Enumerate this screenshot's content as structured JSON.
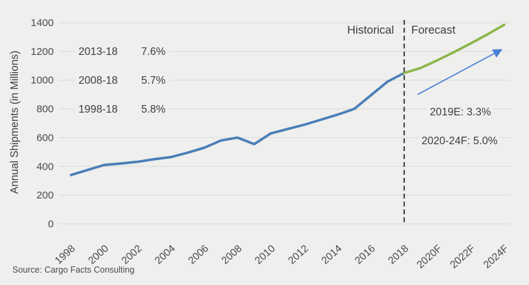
{
  "chart": {
    "ylabel": "Annual Shipments (in Millions)",
    "source": "Source: Cargo Facts Consulting",
    "annotations": {
      "cagr_rows": [
        {
          "period": "2013-18",
          "value": "7.6%"
        },
        {
          "period": "2008-18",
          "value": "5.7%"
        },
        {
          "period": "1998-18",
          "value": "5.8%"
        }
      ],
      "historical_label": "Historical",
      "forecast_label": "Forecast",
      "forecast_note_2019": "2019E: 3.3%",
      "forecast_note_2020_24": "2020-24F: 5.0%"
    }
  },
  "chart_data": {
    "type": "line",
    "title": "",
    "ylabel": "Annual Shipments (in Millions)",
    "xlabel": "",
    "ylim": [
      0,
      1400
    ],
    "yticks": [
      0,
      200,
      400,
      600,
      800,
      1000,
      1200,
      1400
    ],
    "xlim": [
      1998,
      2024
    ],
    "grid": true,
    "legend": "none",
    "divider_x": 2018,
    "colors": {
      "grid": "#d9d9d9",
      "divider": "#3c3c3c",
      "historical_line": "#4a7eb8",
      "forecast_line": "#8db54b",
      "trend_arrow": "#4a7fd4",
      "background": "#efefee",
      "text": "#3d3d3d"
    },
    "series": [
      {
        "name": "Historical",
        "color": "#4a7eb8",
        "x": [
          1998,
          1999,
          2000,
          2001,
          2002,
          2003,
          2004,
          2005,
          2006,
          2007,
          2008,
          2009,
          2010,
          2011,
          2012,
          2013,
          2014,
          2015,
          2016,
          2017,
          2018
        ],
        "values": [
          340,
          375,
          410,
          420,
          432,
          450,
          465,
          495,
          530,
          580,
          600,
          555,
          630,
          660,
          690,
          725,
          760,
          800,
          895,
          990,
          1050
        ]
      },
      {
        "name": "Forecast",
        "color": "#8db54b",
        "x": [
          2018,
          2019,
          2020,
          2021,
          2022,
          2023,
          2024
        ],
        "values": [
          1050,
          1085,
          1139,
          1196,
          1256,
          1319,
          1385
        ]
      }
    ],
    "xticks": [
      {
        "x": 1998,
        "label": "1998"
      },
      {
        "x": 2000,
        "label": "2000"
      },
      {
        "x": 2002,
        "label": "2002"
      },
      {
        "x": 2004,
        "label": "2004"
      },
      {
        "x": 2006,
        "label": "2006"
      },
      {
        "x": 2008,
        "label": "2008"
      },
      {
        "x": 2010,
        "label": "2010"
      },
      {
        "x": 2012,
        "label": "2012"
      },
      {
        "x": 2014,
        "label": "2014"
      },
      {
        "x": 2016,
        "label": "2016"
      },
      {
        "x": 2018,
        "label": "2018"
      },
      {
        "x": 2020,
        "label": "2020F"
      },
      {
        "x": 2022,
        "label": "2022F"
      },
      {
        "x": 2024,
        "label": "2024F"
      }
    ],
    "trend_arrow": {
      "x1": 2018.8,
      "y1": 900,
      "x2": 2023.8,
      "y2": 1210,
      "color": "#4a7fd4"
    }
  }
}
